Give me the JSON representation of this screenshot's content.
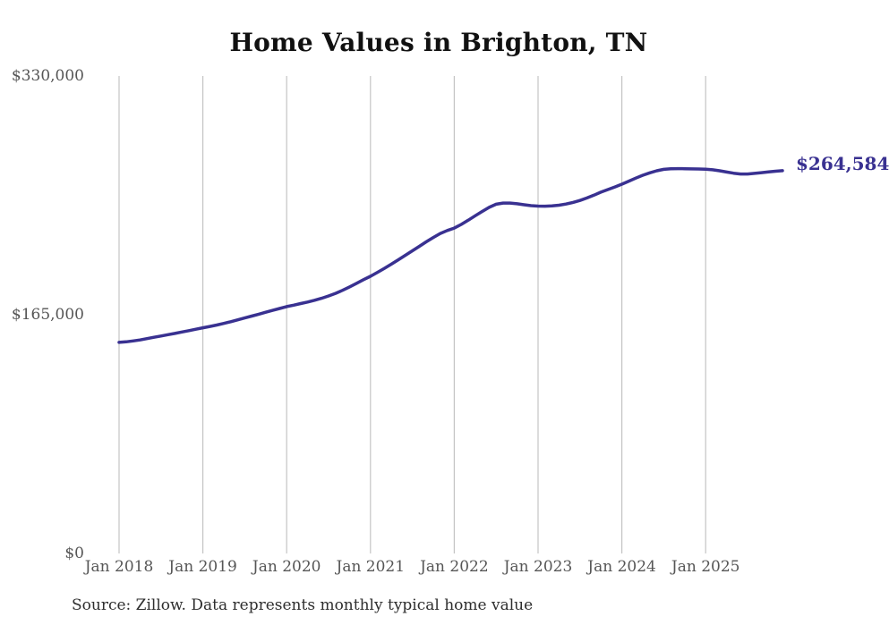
{
  "title": "Home Values in Brighton, TN",
  "end_label": "$264,584",
  "source_note": "Source: Zillow. Data represents monthly typical home value",
  "colors": {
    "line": "#393191",
    "annotation": "#393191",
    "grid": "#c4c4c4",
    "tick_text": "#565656",
    "title_text": "#111111",
    "source_text": "#2e2e2e",
    "background": "#ffffff"
  },
  "chart_data": {
    "type": "line",
    "title": "Home Values in Brighton, TN",
    "x_start": "Jan 2018",
    "x_end": "Dec 2025",
    "frequency": "monthly",
    "values": [
      145900,
      146300,
      146900,
      147600,
      148500,
      149400,
      150300,
      151200,
      152100,
      153100,
      154000,
      155000,
      156000,
      156900,
      157900,
      159000,
      160200,
      161500,
      162800,
      164100,
      165400,
      166700,
      168000,
      169300,
      170600,
      171600,
      172700,
      173800,
      175000,
      176400,
      178000,
      179800,
      181900,
      184200,
      186700,
      189200,
      191600,
      194300,
      197100,
      200000,
      203000,
      206100,
      209200,
      212300,
      215400,
      218400,
      221200,
      223200,
      224900,
      227400,
      230300,
      233400,
      236400,
      239200,
      241400,
      242200,
      242200,
      241700,
      241000,
      240400,
      240100,
      240000,
      240200,
      240700,
      241500,
      242600,
      244000,
      245700,
      247600,
      249700,
      251500,
      253300,
      255200,
      257300,
      259400,
      261400,
      263100,
      264500,
      265500,
      265900,
      266000,
      265900,
      265800,
      265700,
      265600,
      265200,
      264500,
      263600,
      262800,
      262300,
      262300,
      262700,
      263200,
      263700,
      264200,
      264584
    ],
    "latest_value": 264584,
    "latest_value_label": "$264,584",
    "ylim": [
      0,
      330000
    ],
    "y_tick_values": [
      0,
      165000,
      330000
    ],
    "y_tick_labels": [
      "$0",
      "$165,000",
      "$330,000"
    ],
    "x_tick_labels": [
      "Jan 2018",
      "Jan 2019",
      "Jan 2020",
      "Jan 2021",
      "Jan 2022",
      "Jan 2023",
      "Jan 2024",
      "Jan 2025"
    ],
    "x_tick_month_indices": [
      0,
      12,
      24,
      36,
      48,
      60,
      72,
      84
    ],
    "grid": "vertical-only",
    "legend": null,
    "line_color": "#393191"
  }
}
